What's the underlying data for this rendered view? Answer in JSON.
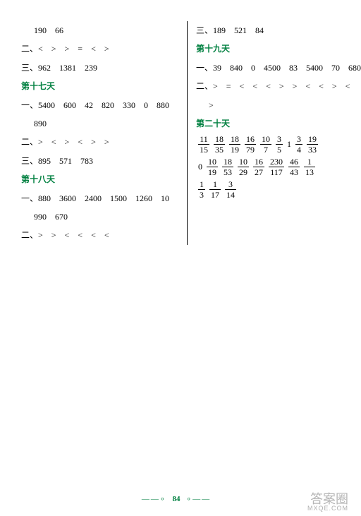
{
  "left": {
    "l1": "190　66",
    "l2": "二、<　>　>　=　<　>",
    "l3": "三、962　1381　239",
    "h17": "第十七天",
    "l4": "一、5400　600　42　820　330　0　880",
    "l5": "890",
    "l6": "二、>　<　>　<　>　>",
    "l7": "三、895　571　783",
    "h18": "第十八天",
    "l8": "一、880　3600　2400　1500　1260　10",
    "l9": "990　670",
    "l10": "二、>　>　<　<　<　<"
  },
  "right": {
    "r1": "三、189　521　84",
    "h19": "第十九天",
    "r2": "一、39　840　0　4500　83　5400　70　680",
    "r3": "二、>　=　<　<　<　>　>　<　<　>　<",
    "r4": ">",
    "h20": "第二十天",
    "fracRow1": [
      {
        "n": "11",
        "d": "15"
      },
      {
        "n": "18",
        "d": "35"
      },
      {
        "n": "18",
        "d": "19"
      },
      {
        "n": "16",
        "d": "79"
      },
      {
        "n": "10",
        "d": "7"
      },
      {
        "n": "3",
        "d": "5"
      },
      {
        "plain": "1"
      },
      {
        "n": "3",
        "d": "4"
      },
      {
        "n": "19",
        "d": "33"
      }
    ],
    "fracRow2": [
      {
        "plain": "0"
      },
      {
        "n": "10",
        "d": "19"
      },
      {
        "n": "18",
        "d": "53"
      },
      {
        "n": "10",
        "d": "29"
      },
      {
        "n": "16",
        "d": "27"
      },
      {
        "n": "230",
        "d": "117"
      },
      {
        "n": "46",
        "d": "43"
      },
      {
        "n": "1",
        "d": "13"
      }
    ],
    "fracRow3": [
      {
        "n": "1",
        "d": "3"
      },
      {
        "n": "1",
        "d": "17"
      },
      {
        "n": "3",
        "d": "14"
      }
    ]
  },
  "footer": {
    "page": "84",
    "decoL": "——∘",
    "decoR": "∘——"
  },
  "watermark": {
    "big": "答案圈",
    "small": "MXQE.COM"
  }
}
